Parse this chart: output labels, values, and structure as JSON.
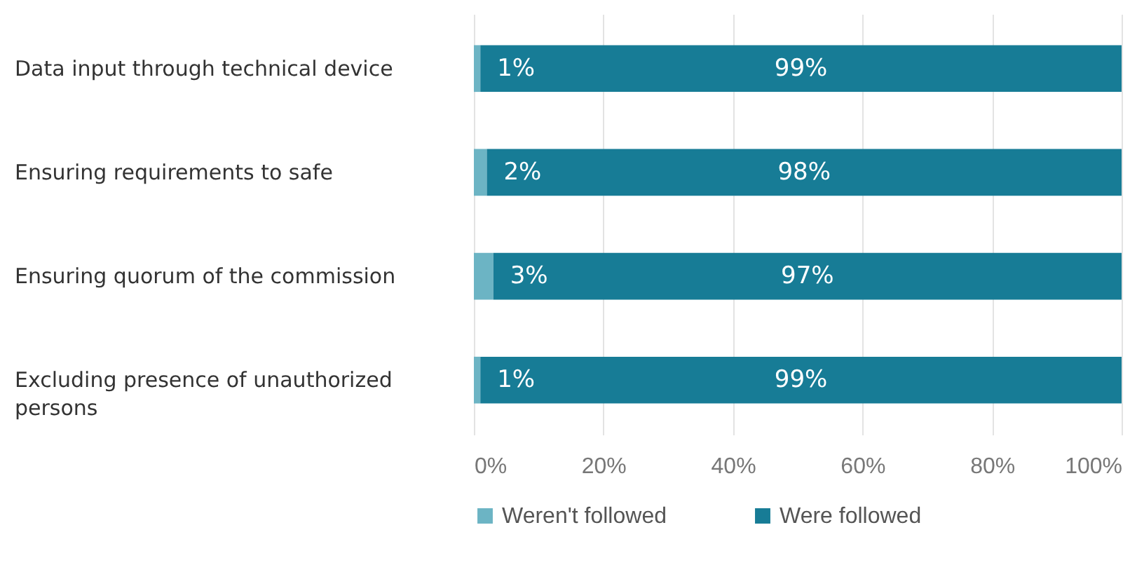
{
  "chart_data": {
    "type": "bar",
    "orientation": "horizontal",
    "stacked": true,
    "categories": [
      "Data input through technical device",
      "Ensuring requirements to safe",
      "Ensuring quorum of the commission",
      "Excluding presence of unauthorized persons"
    ],
    "series": [
      {
        "name": "Weren't followed",
        "color": "#6cb4c4",
        "values": [
          1,
          2,
          3,
          1
        ],
        "value_labels": [
          "1%",
          "2%",
          "3%",
          "1%"
        ]
      },
      {
        "name": "Were followed",
        "color": "#177c96",
        "values": [
          99,
          98,
          97,
          99
        ],
        "value_labels": [
          "99%",
          "98%",
          "97%",
          "99%"
        ]
      }
    ],
    "xlim": [
      0,
      100
    ],
    "xticks": [
      {
        "value": 0,
        "label": "0%"
      },
      {
        "value": 20,
        "label": "20%"
      },
      {
        "value": 40,
        "label": "40%"
      },
      {
        "value": 60,
        "label": "60%"
      },
      {
        "value": 80,
        "label": "80%"
      },
      {
        "value": 100,
        "label": "100%"
      }
    ],
    "grid": "x",
    "legend": "bottom"
  }
}
